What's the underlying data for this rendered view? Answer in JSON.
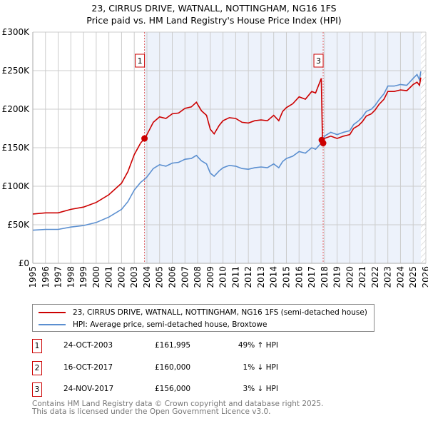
{
  "title": "23, CIRRUS DRIVE, WATNALL, NOTTINGHAM, NG16 1FS",
  "subtitle": "Price paid vs. HM Land Registry's House Price Index (HPI)",
  "colors": {
    "property": "#cc0000",
    "hpi": "#5b8fd0",
    "shade": "#edf2fb",
    "grid": "#cccccc"
  },
  "chart_data": {
    "type": "line",
    "title": "Price paid vs. HM Land Registry's House Price Index (HPI)",
    "xlim": [
      1995,
      2026
    ],
    "ylim": [
      0,
      300000
    ],
    "yticks": [
      {
        "v": 0,
        "label": "£0"
      },
      {
        "v": 50000,
        "label": "£50K"
      },
      {
        "v": 100000,
        "label": "£100K"
      },
      {
        "v": 150000,
        "label": "£150K"
      },
      {
        "v": 200000,
        "label": "£200K"
      },
      {
        "v": 250000,
        "label": "£250K"
      },
      {
        "v": 300000,
        "label": "£300K"
      }
    ],
    "xticks": [
      "1995",
      "1996",
      "1997",
      "1998",
      "1999",
      "2000",
      "2001",
      "2002",
      "2003",
      "2004",
      "2005",
      "2006",
      "2007",
      "2008",
      "2009",
      "2010",
      "2011",
      "2012",
      "2013",
      "2014",
      "2015",
      "2016",
      "2017",
      "2018",
      "2019",
      "2020",
      "2021",
      "2022",
      "2023",
      "2024",
      "2025",
      "2026"
    ],
    "grid": true,
    "shaded_range": [
      2003.81,
      2025.6
    ],
    "hatched_from": 2025.6,
    "series": [
      {
        "name": "23, CIRRUS DRIVE, WATNALL, NOTTINGHAM, NG16 1FS (semi-detached house)",
        "x": [
          1995,
          1996,
          1997,
          1998,
          1999,
          2000,
          2001,
          2002,
          2002.5,
          2003,
          2003.5,
          2003.81,
          2004,
          2004.5,
          2005,
          2005.5,
          2006,
          2006.5,
          2007,
          2007.5,
          2007.9,
          2008.3,
          2008.7,
          2009,
          2009.3,
          2009.7,
          2010,
          2010.5,
          2011,
          2011.5,
          2012,
          2012.5,
          2013,
          2013.5,
          2014,
          2014.4,
          2014.7,
          2015,
          2015.5,
          2016,
          2016.5,
          2017,
          2017.3,
          2017.75,
          2017.85,
          2018,
          2018.5,
          2019,
          2019.5,
          2020,
          2020.3,
          2020.7,
          2021,
          2021.3,
          2021.7,
          2022,
          2022.3,
          2022.7,
          2023,
          2023.5,
          2024,
          2024.5,
          2025,
          2025.3,
          2025.5,
          2025.6
        ],
        "y": [
          64000,
          65500,
          65500,
          70000,
          73000,
          79000,
          89000,
          104000,
          119000,
          141000,
          156000,
          161995,
          167000,
          183000,
          190000,
          188000,
          194000,
          195000,
          201000,
          203000,
          209000,
          198000,
          192000,
          174000,
          168000,
          179000,
          185000,
          189000,
          188000,
          183000,
          182000,
          185000,
          186000,
          185000,
          192000,
          185000,
          197000,
          202000,
          207000,
          216000,
          213000,
          223000,
          221000,
          240000,
          156000,
          162000,
          165000,
          162000,
          165000,
          167000,
          175000,
          179000,
          184000,
          191000,
          194000,
          199000,
          206000,
          213000,
          223000,
          223000,
          225000,
          224000,
          232000,
          235000,
          231000,
          241000
        ]
      },
      {
        "name": "HPI: Average price, semi-detached house, Broxtowe",
        "x": [
          1995,
          1996,
          1997,
          1998,
          1999,
          2000,
          2001,
          2002,
          2002.5,
          2003,
          2003.5,
          2003.81,
          2004,
          2004.5,
          2005,
          2005.5,
          2006,
          2006.5,
          2007,
          2007.5,
          2007.9,
          2008.3,
          2008.7,
          2009,
          2009.3,
          2009.7,
          2010,
          2010.5,
          2011,
          2011.5,
          2012,
          2012.5,
          2013,
          2013.5,
          2014,
          2014.4,
          2014.7,
          2015,
          2015.5,
          2016,
          2016.5,
          2017,
          2017.3,
          2017.85,
          2018,
          2018.5,
          2019,
          2019.5,
          2020,
          2020.3,
          2020.7,
          2021,
          2021.3,
          2021.7,
          2022,
          2022.3,
          2022.7,
          2023,
          2023.5,
          2024,
          2024.5,
          2025,
          2025.3,
          2025.5,
          2025.6
        ],
        "y": [
          43000,
          44000,
          44000,
          47000,
          49000,
          53000,
          60000,
          70000,
          80000,
          95000,
          105000,
          109000,
          112000,
          123000,
          128000,
          126000,
          130000,
          131000,
          135000,
          136000,
          140000,
          133000,
          129000,
          117000,
          113000,
          120000,
          124000,
          127000,
          126000,
          123000,
          122000,
          124000,
          125000,
          124000,
          129000,
          124000,
          132000,
          136000,
          139000,
          145000,
          143000,
          150000,
          148000,
          158000,
          165000,
          170000,
          167000,
          170000,
          172000,
          180000,
          185000,
          190000,
          197000,
          200000,
          205000,
          212000,
          220000,
          230000,
          230000,
          232000,
          231000,
          240000,
          245000,
          238000,
          249000
        ]
      }
    ],
    "sales": [
      {
        "label": "1",
        "x": 2003.81,
        "y": 161995,
        "show_marker_label": true
      },
      {
        "label": "2",
        "x": 2017.79,
        "y": 160000,
        "show_marker_label": false
      },
      {
        "label": "3",
        "x": 2017.9,
        "y": 156000,
        "show_marker_label": true
      }
    ]
  },
  "legend": {
    "property": "23, CIRRUS DRIVE, WATNALL, NOTTINGHAM, NG16 1FS (semi-detached house)",
    "hpi": "HPI: Average price, semi-detached house, Broxtowe"
  },
  "transactions": [
    {
      "num": "1",
      "date": "24-OCT-2003",
      "price": "£161,995",
      "delta": "49% ↑ HPI"
    },
    {
      "num": "2",
      "date": "16-OCT-2017",
      "price": "£160,000",
      "delta": "1% ↓ HPI"
    },
    {
      "num": "3",
      "date": "24-NOV-2017",
      "price": "£156,000",
      "delta": "3% ↓ HPI"
    }
  ],
  "footer": [
    "Contains HM Land Registry data © Crown copyright and database right 2025.",
    "This data is licensed under the Open Government Licence v3.0."
  ]
}
